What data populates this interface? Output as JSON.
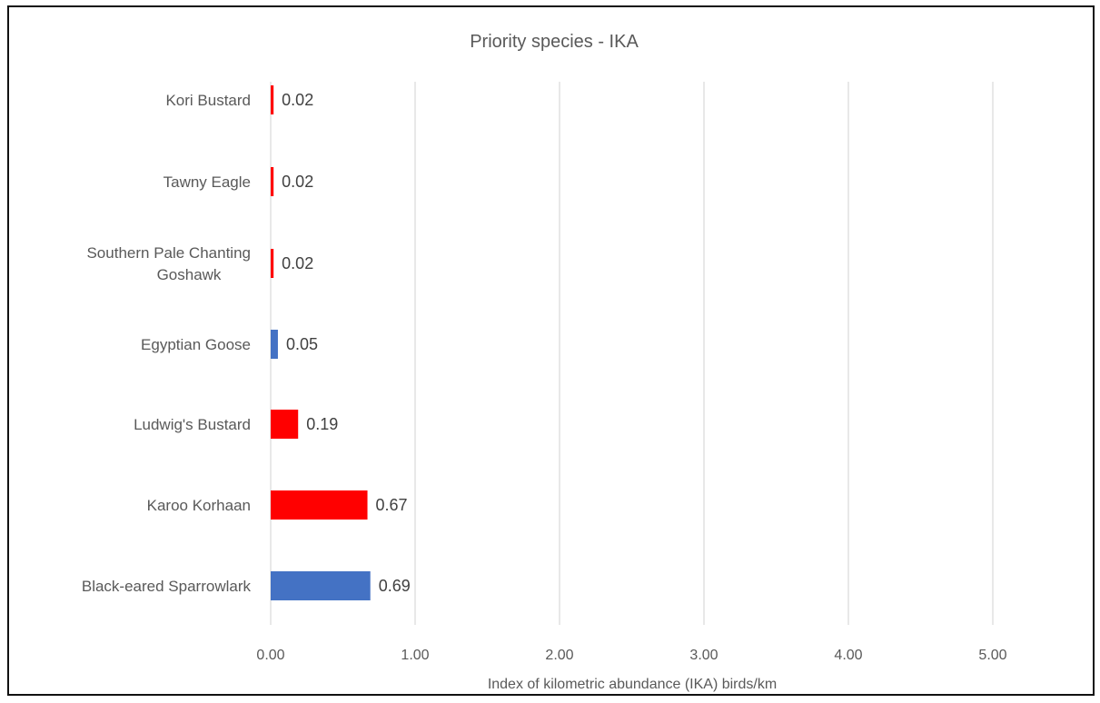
{
  "chart_data": {
    "type": "bar",
    "orientation": "horizontal",
    "title": "Priority species - IKA",
    "xlabel": "Index of kilometric abundance (IKA) birds/km",
    "ylabel": "",
    "xlim": [
      0,
      5
    ],
    "x_ticks": [
      "0.00",
      "1.00",
      "2.00",
      "3.00",
      "4.00",
      "5.00"
    ],
    "grid": true,
    "legend": "none",
    "categories": [
      [
        "Kori Bustard"
      ],
      [
        "Tawny Eagle"
      ],
      [
        "Southern Pale Chanting",
        "Goshawk"
      ],
      [
        "Egyptian Goose"
      ],
      [
        "Ludwig's Bustard"
      ],
      [
        "Karoo Korhaan"
      ],
      [
        "Black-eared Sparrowlark"
      ]
    ],
    "values": [
      0.02,
      0.02,
      0.02,
      0.05,
      0.19,
      0.67,
      0.69
    ],
    "data_labels": [
      "0.02",
      "0.02",
      "0.02",
      "0.05",
      "0.19",
      "0.67",
      "0.69"
    ],
    "bar_colors": [
      "#ff0000",
      "#ff0000",
      "#ff0000",
      "#4472c4",
      "#ff0000",
      "#ff0000",
      "#4472c4"
    ],
    "colors": {
      "gridline": "#d9d9d9",
      "text": "#595959",
      "frame": "#111111"
    }
  }
}
